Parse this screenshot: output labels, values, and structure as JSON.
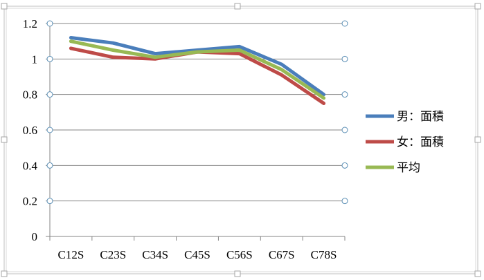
{
  "chart_data": {
    "type": "line",
    "title": "",
    "xlabel": "",
    "ylabel": "",
    "categories": [
      "C12S",
      "C23S",
      "C34S",
      "C45S",
      "C56S",
      "C67S",
      "C78S"
    ],
    "ylim": [
      0,
      1.2
    ],
    "yticks": [
      0,
      0.2,
      0.4,
      0.6,
      0.8,
      1,
      1.2
    ],
    "ytick_labels": [
      "0",
      "0.2",
      "0.4",
      "0.6",
      "0.8",
      "1",
      "1.2"
    ],
    "grid": "horizontal",
    "legend_position": "right",
    "series": [
      {
        "name": "男：面積",
        "color": "#4a7ebb",
        "values": [
          1.12,
          1.09,
          1.03,
          1.05,
          1.07,
          0.97,
          0.8
        ]
      },
      {
        "name": "女：面積",
        "color": "#be4b48",
        "values": [
          1.06,
          1.01,
          1.0,
          1.04,
          1.03,
          0.91,
          0.75
        ]
      },
      {
        "name": "平均",
        "color": "#98b954",
        "values": [
          1.1,
          1.05,
          1.01,
          1.04,
          1.05,
          0.94,
          0.78
        ]
      }
    ]
  }
}
